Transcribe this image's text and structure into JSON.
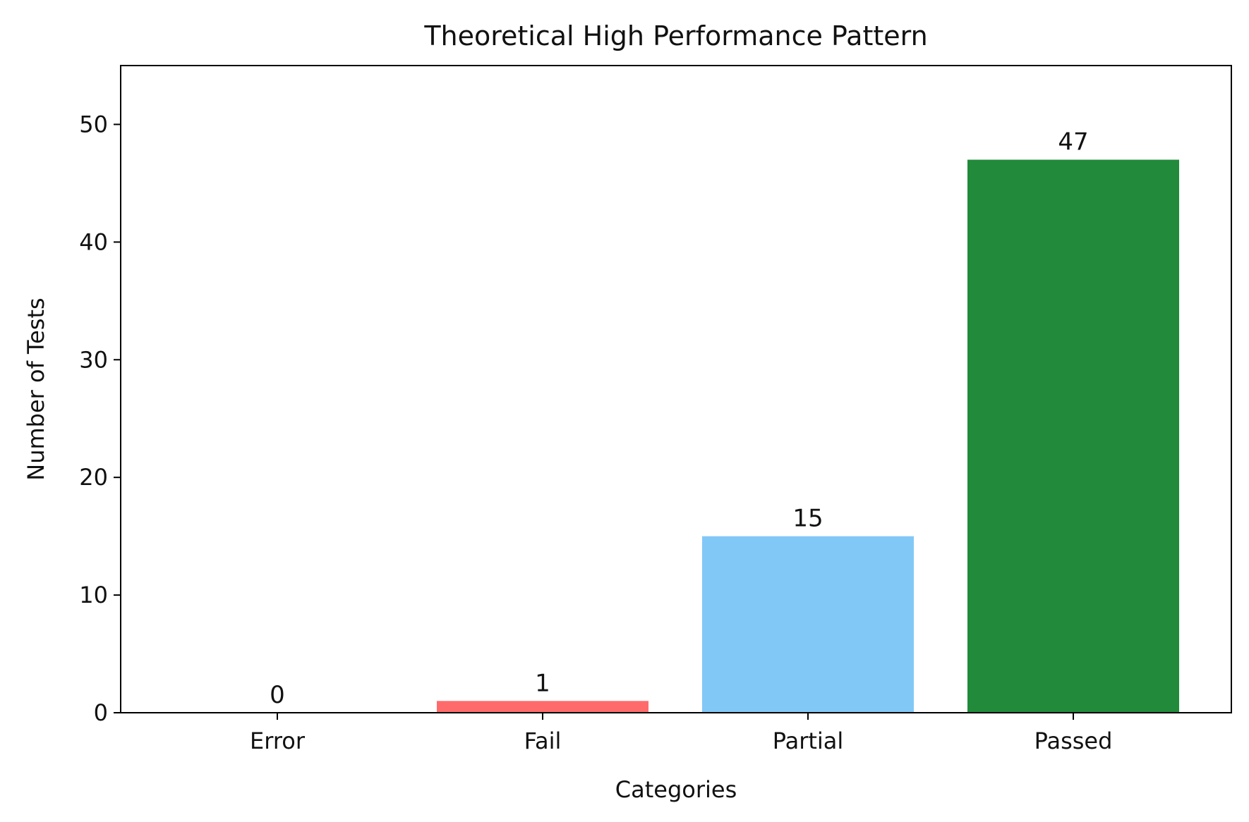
{
  "chart_data": {
    "type": "bar",
    "title": "Theoretical High Performance Pattern",
    "xlabel": "Categories",
    "ylabel": "Number of Tests",
    "categories": [
      "Error",
      "Fail",
      "Partial",
      "Passed"
    ],
    "values": [
      0,
      1,
      15,
      47
    ],
    "data_labels": [
      "0",
      "1",
      "15",
      "47"
    ],
    "colors": [
      "#ff6b6b",
      "#ff6b6b",
      "#82c8f7",
      "#218b3b"
    ],
    "ylim": [
      0,
      55
    ],
    "yticks": [
      0,
      10,
      20,
      30,
      40,
      50
    ],
    "grid": false,
    "legend": "none"
  }
}
